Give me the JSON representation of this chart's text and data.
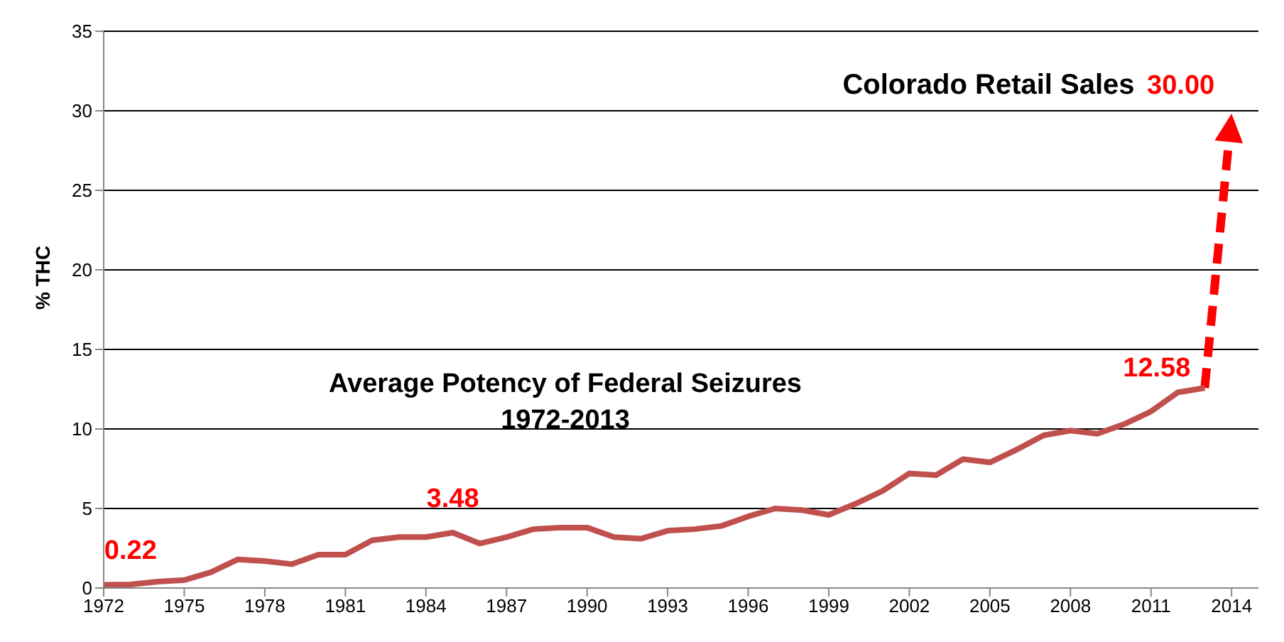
{
  "chart_data": {
    "type": "line",
    "ylabel": "% THC",
    "xlim": [
      1972,
      2015
    ],
    "xticks": [
      1972,
      1975,
      1978,
      1981,
      1984,
      1987,
      1990,
      1993,
      1996,
      1999,
      2002,
      2005,
      2008,
      2011,
      2014
    ],
    "ylim": [
      0,
      35
    ],
    "yticks": [
      0,
      5,
      10,
      15,
      20,
      25,
      30,
      35
    ],
    "grid": "y",
    "legend": false,
    "marker": "none",
    "annotations": [
      "Colorado Retail Sales",
      "Average Potency of Federal Seizures\n1972-2013",
      "30.00"
    ],
    "series": [
      {
        "color": "#c0504d",
        "line_style": "solid",
        "x": [
          1972,
          1973,
          1974,
          1975,
          1976,
          1977,
          1978,
          1979,
          1980,
          1981,
          1982,
          1983,
          1984,
          1985,
          1986,
          1987,
          1988,
          1989,
          1990,
          1991,
          1992,
          1993,
          1994,
          1995,
          1996,
          1997,
          1998,
          1999,
          2000,
          2001,
          2002,
          2003,
          2004,
          2005,
          2006,
          2007,
          2008,
          2009,
          2010,
          2011,
          2012,
          2013
        ],
        "values": [
          0.2,
          0.22,
          0.4,
          0.5,
          1.0,
          1.8,
          1.7,
          1.5,
          2.1,
          2.1,
          3.0,
          3.2,
          3.2,
          3.48,
          2.8,
          3.2,
          3.7,
          3.8,
          3.8,
          3.2,
          3.1,
          3.6,
          3.7,
          3.9,
          4.5,
          5.0,
          4.9,
          4.6,
          5.3,
          6.1,
          7.2,
          7.1,
          8.1,
          7.9,
          8.7,
          9.6,
          9.9,
          9.7,
          10.3,
          11.1,
          12.3,
          12.58
        ],
        "value_labels": [
          null,
          "0.22",
          null,
          null,
          null,
          null,
          null,
          null,
          null,
          null,
          null,
          null,
          null,
          "3.48",
          null,
          null,
          null,
          null,
          null,
          null,
          null,
          null,
          null,
          null,
          null,
          null,
          null,
          null,
          null,
          null,
          null,
          null,
          null,
          null,
          null,
          null,
          null,
          null,
          null,
          null,
          null,
          "12.58"
        ]
      }
    ]
  }
}
